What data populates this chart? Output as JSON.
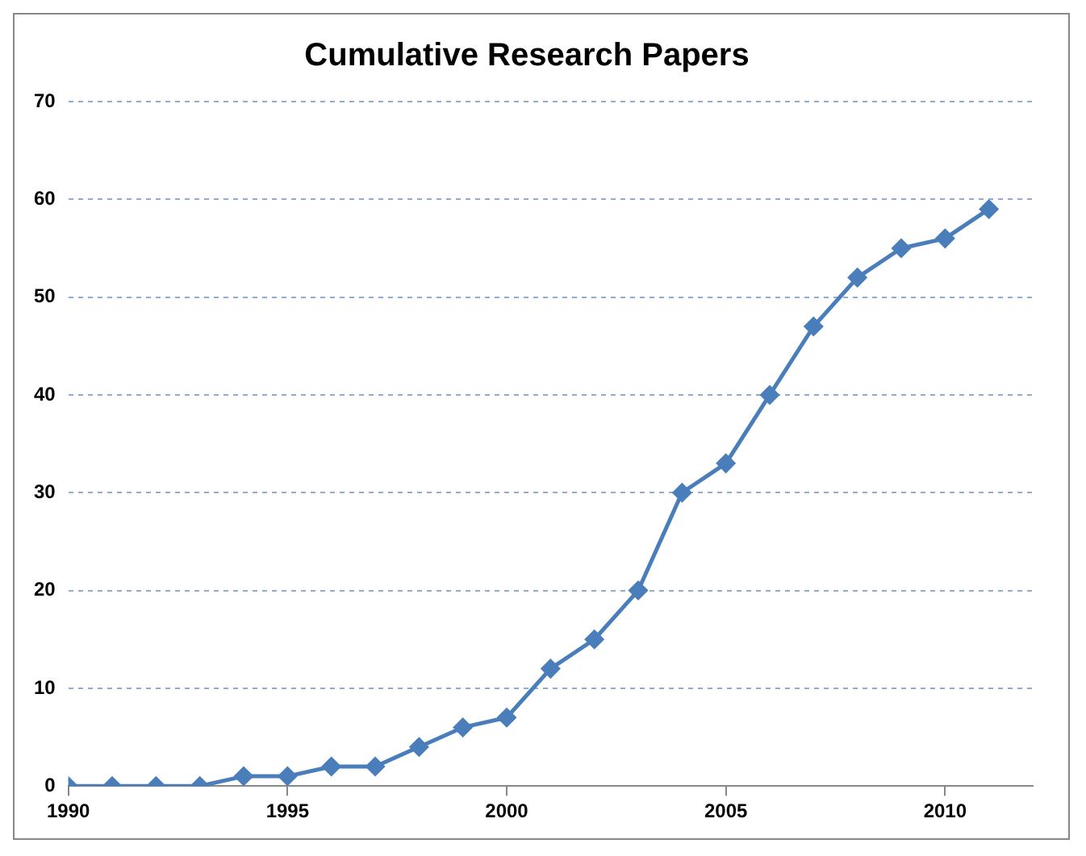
{
  "chart_data": {
    "type": "line",
    "title": "Cumulative Research Papers",
    "x": [
      1990,
      1991,
      1992,
      1993,
      1994,
      1995,
      1996,
      1997,
      1998,
      1999,
      2000,
      2001,
      2002,
      2003,
      2004,
      2005,
      2006,
      2007,
      2008,
      2009,
      2010,
      2011
    ],
    "series": [
      {
        "color": "#4a7ebb",
        "values": [
          0,
          0,
          0,
          0,
          1,
          1,
          2,
          2,
          4,
          6,
          7,
          12,
          15,
          20,
          30,
          33,
          40,
          47,
          52,
          55,
          56,
          59
        ]
      }
    ],
    "xlim": [
      1990,
      2012
    ],
    "xticks": [
      1990,
      1995,
      2000,
      2005,
      2010
    ],
    "ylim": [
      0,
      70
    ],
    "yticks": [
      0,
      10,
      20,
      30,
      40,
      50,
      60,
      70
    ],
    "grid": "y",
    "marker": "diamond",
    "line_style": "solid",
    "legend": false
  }
}
